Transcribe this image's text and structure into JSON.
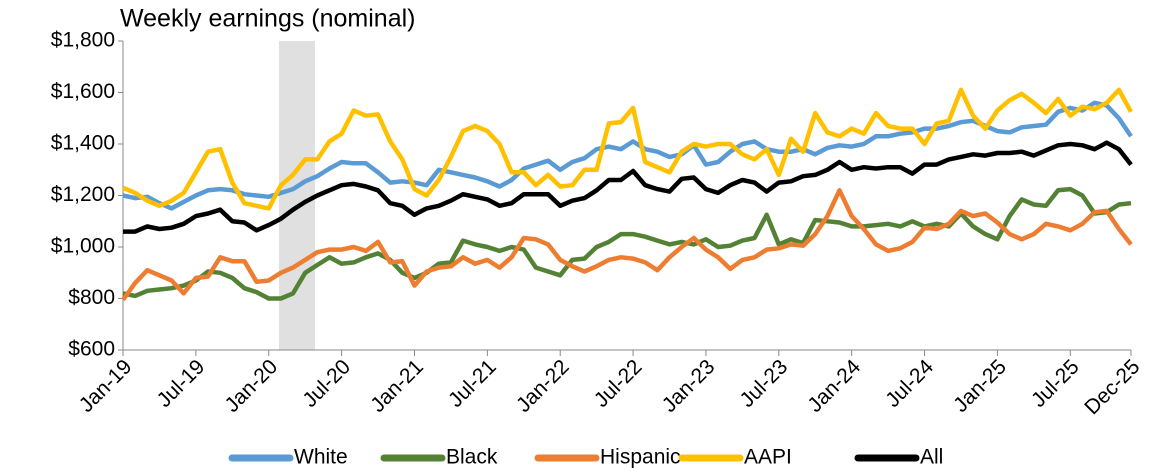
{
  "chart_data": {
    "type": "line",
    "title": "Weekly earnings (nominal)",
    "categories": [
      "Jan-19",
      null,
      null,
      null,
      null,
      null,
      "Jul-19",
      null,
      null,
      null,
      null,
      null,
      "Jan-20",
      null,
      null,
      null,
      null,
      null,
      "Jul-20",
      null,
      null,
      null,
      null,
      null,
      "Jan-21",
      null,
      null,
      null,
      null,
      null,
      "Jul-21",
      null,
      null,
      null,
      null,
      null,
      "Jan-22",
      null,
      null,
      null,
      null,
      null,
      "Jul-22",
      null,
      null,
      null,
      null,
      null,
      "Jan-23",
      null,
      null,
      null,
      null,
      null,
      "Jul-23",
      null,
      null,
      null,
      null,
      null,
      "Jan-24",
      null,
      null,
      null,
      null,
      null,
      "Jul-24",
      null,
      null,
      null,
      null,
      null,
      "Jan-25",
      null,
      null,
      null,
      null,
      null,
      "Jul-25",
      null,
      null,
      null,
      null,
      "Dec-25"
    ],
    "series": [
      {
        "name": "White",
        "color": "#5b9bd5",
        "values": [
          1200,
          1190,
          1195,
          1170,
          1150,
          1175,
          1200,
          1220,
          1225,
          1220,
          1205,
          1200,
          1195,
          1210,
          1225,
          1255,
          1275,
          1305,
          1330,
          1325,
          1325,
          1290,
          1250,
          1255,
          1250,
          1240,
          1300,
          1290,
          1280,
          1270,
          1255,
          1235,
          1260,
          1305,
          1320,
          1335,
          1300,
          1330,
          1345,
          1380,
          1390,
          1380,
          1410,
          1380,
          1370,
          1350,
          1360,
          1395,
          1320,
          1330,
          1370,
          1400,
          1410,
          1380,
          1370,
          1370,
          1380,
          1360,
          1385,
          1395,
          1390,
          1400,
          1430,
          1430,
          1440,
          1445,
          1460,
          1460,
          1470,
          1485,
          1490,
          1470,
          1450,
          1445,
          1465,
          1470,
          1475,
          1525,
          1540,
          1530,
          1560,
          1550,
          1500,
          1430
        ]
      },
      {
        "name": "Black",
        "color": "#548235",
        "values": [
          820,
          810,
          830,
          835,
          840,
          850,
          870,
          905,
          900,
          880,
          840,
          825,
          800,
          800,
          820,
          900,
          930,
          960,
          935,
          940,
          960,
          975,
          950,
          900,
          880,
          900,
          935,
          940,
          1025,
          1010,
          1000,
          985,
          1000,
          990,
          920,
          905,
          890,
          950,
          955,
          1000,
          1020,
          1050,
          1050,
          1040,
          1025,
          1010,
          1020,
          1010,
          1030,
          1000,
          1005,
          1025,
          1035,
          1125,
          1010,
          1030,
          1015,
          1105,
          1100,
          1095,
          1080,
          1080,
          1085,
          1090,
          1080,
          1100,
          1080,
          1090,
          1080,
          1130,
          1080,
          1050,
          1030,
          1120,
          1185,
          1165,
          1160,
          1220,
          1225,
          1200,
          1130,
          1135,
          1165,
          1170
        ]
      },
      {
        "name": "Hispanic",
        "color": "#ed7d31",
        "values": [
          795,
          860,
          910,
          890,
          870,
          820,
          880,
          885,
          960,
          945,
          945,
          865,
          870,
          900,
          920,
          950,
          980,
          990,
          990,
          1000,
          985,
          1020,
          940,
          945,
          850,
          905,
          920,
          925,
          960,
          935,
          950,
          920,
          960,
          1035,
          1030,
          1010,
          950,
          925,
          905,
          925,
          950,
          960,
          955,
          940,
          910,
          960,
          1000,
          1035,
          990,
          960,
          915,
          950,
          960,
          990,
          995,
          1010,
          1005,
          1050,
          1120,
          1220,
          1120,
          1070,
          1010,
          985,
          995,
          1020,
          1075,
          1070,
          1090,
          1140,
          1120,
          1130,
          1095,
          1050,
          1030,
          1050,
          1090,
          1080,
          1065,
          1090,
          1135,
          1140,
          1070,
          1010
        ]
      },
      {
        "name": "AAPI",
        "color": "#ffc000",
        "values": [
          1230,
          1210,
          1180,
          1160,
          1180,
          1210,
          1290,
          1370,
          1380,
          1250,
          1170,
          1160,
          1150,
          1240,
          1280,
          1340,
          1340,
          1410,
          1440,
          1530,
          1510,
          1515,
          1410,
          1340,
          1225,
          1200,
          1260,
          1350,
          1450,
          1470,
          1450,
          1400,
          1290,
          1290,
          1240,
          1280,
          1235,
          1240,
          1300,
          1300,
          1480,
          1485,
          1540,
          1330,
          1310,
          1290,
          1370,
          1400,
          1390,
          1400,
          1400,
          1360,
          1340,
          1380,
          1280,
          1420,
          1370,
          1520,
          1445,
          1430,
          1460,
          1440,
          1520,
          1470,
          1460,
          1460,
          1400,
          1480,
          1490,
          1610,
          1510,
          1460,
          1530,
          1570,
          1595,
          1560,
          1520,
          1575,
          1510,
          1545,
          1535,
          1560,
          1610,
          1525
        ]
      },
      {
        "name": "All",
        "color": "#000000",
        "values": [
          1060,
          1060,
          1080,
          1070,
          1075,
          1090,
          1120,
          1130,
          1145,
          1100,
          1095,
          1065,
          1085,
          1110,
          1145,
          1175,
          1200,
          1220,
          1240,
          1245,
          1235,
          1220,
          1170,
          1160,
          1125,
          1150,
          1160,
          1180,
          1205,
          1195,
          1185,
          1160,
          1170,
          1205,
          1205,
          1205,
          1160,
          1180,
          1190,
          1220,
          1260,
          1260,
          1295,
          1240,
          1225,
          1215,
          1265,
          1270,
          1225,
          1210,
          1240,
          1260,
          1250,
          1215,
          1250,
          1255,
          1275,
          1280,
          1300,
          1330,
          1300,
          1310,
          1305,
          1310,
          1310,
          1285,
          1320,
          1320,
          1340,
          1350,
          1360,
          1355,
          1365,
          1365,
          1370,
          1355,
          1375,
          1395,
          1400,
          1395,
          1380,
          1405,
          1380,
          1320
        ]
      }
    ],
    "ylim": [
      600,
      1800
    ],
    "yticks": [
      {
        "value": 600,
        "label": "$600"
      },
      {
        "value": 800,
        "label": "$800"
      },
      {
        "value": 1000,
        "label": "$1,000"
      },
      {
        "value": 1200,
        "label": "$1,200"
      },
      {
        "value": 1400,
        "label": "$1,400"
      },
      {
        "value": 1600,
        "label": "$1,600"
      },
      {
        "value": 1800,
        "label": "$1,800"
      }
    ],
    "grid": false,
    "legend": "bottom"
  }
}
